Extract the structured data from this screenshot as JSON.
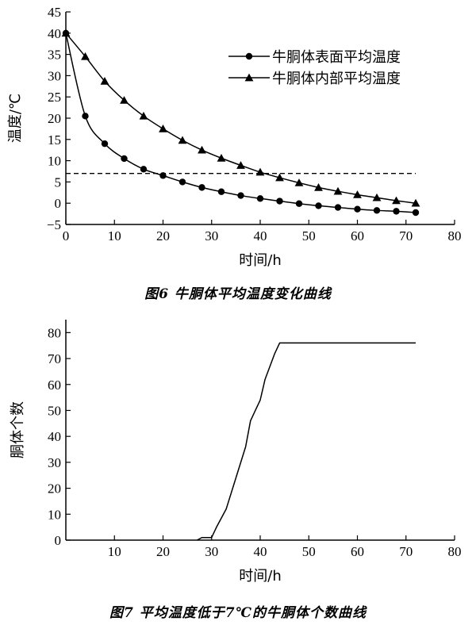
{
  "chart_data": [
    {
      "type": "line",
      "caption": "图6 牛胴体平均温度变化曲线",
      "xlabel": "时间/h",
      "ylabel": "温度/℃",
      "xlim": [
        0,
        80
      ],
      "ylim": [
        -5,
        45
      ],
      "x_ticks": [
        0,
        10,
        20,
        30,
        40,
        50,
        60,
        70,
        80
      ],
      "y_ticks": [
        -5,
        0,
        5,
        10,
        15,
        20,
        25,
        30,
        35,
        40,
        45
      ],
      "legend_position": "top-right",
      "threshold": {
        "y": 7,
        "x_range": [
          0,
          72
        ],
        "style": "dashed"
      },
      "series": [
        {
          "name": "牛胴体表面平均温度",
          "marker": "circle",
          "x": [
            0,
            4,
            8,
            12,
            16,
            20,
            24,
            28,
            32,
            36,
            40,
            44,
            48,
            52,
            56,
            60,
            64,
            68,
            72
          ],
          "y": [
            40,
            20.5,
            14,
            10.5,
            8,
            6.5,
            5,
            3.7,
            2.7,
            1.8,
            1.1,
            0.5,
            -0.1,
            -0.6,
            -1,
            -1.4,
            -1.7,
            -1.9,
            -2.2
          ]
        },
        {
          "name": "牛胴体内部平均温度",
          "marker": "triangle",
          "x": [
            0,
            4,
            8,
            12,
            16,
            20,
            24,
            28,
            32,
            36,
            40,
            44,
            48,
            52,
            56,
            60,
            64,
            68,
            72
          ],
          "y": [
            40,
            34.5,
            28.7,
            24.2,
            20.5,
            17.5,
            14.8,
            12.5,
            10.6,
            8.9,
            7.3,
            6,
            4.8,
            3.7,
            2.8,
            2,
            1.3,
            0.6,
            0
          ]
        }
      ]
    },
    {
      "type": "line",
      "caption": "图7 平均温度低于7℃的牛胴体个数曲线",
      "xlabel": "时间/h",
      "ylabel": "胴体个数",
      "xlim": [
        0,
        80
      ],
      "ylim": [
        0,
        85
      ],
      "x_ticks": [
        10,
        20,
        30,
        40,
        50,
        60,
        70,
        80
      ],
      "y_ticks": [
        0,
        10,
        20,
        30,
        40,
        50,
        60,
        70,
        80
      ],
      "series": [
        {
          "x": [
            27,
            28,
            30,
            31,
            33,
            35,
            37,
            38,
            39,
            40,
            41,
            42,
            43,
            44,
            72
          ],
          "y": [
            0,
            1,
            1,
            5,
            12,
            24,
            36,
            46,
            50,
            54,
            62,
            67,
            72,
            76,
            76
          ]
        }
      ]
    }
  ]
}
